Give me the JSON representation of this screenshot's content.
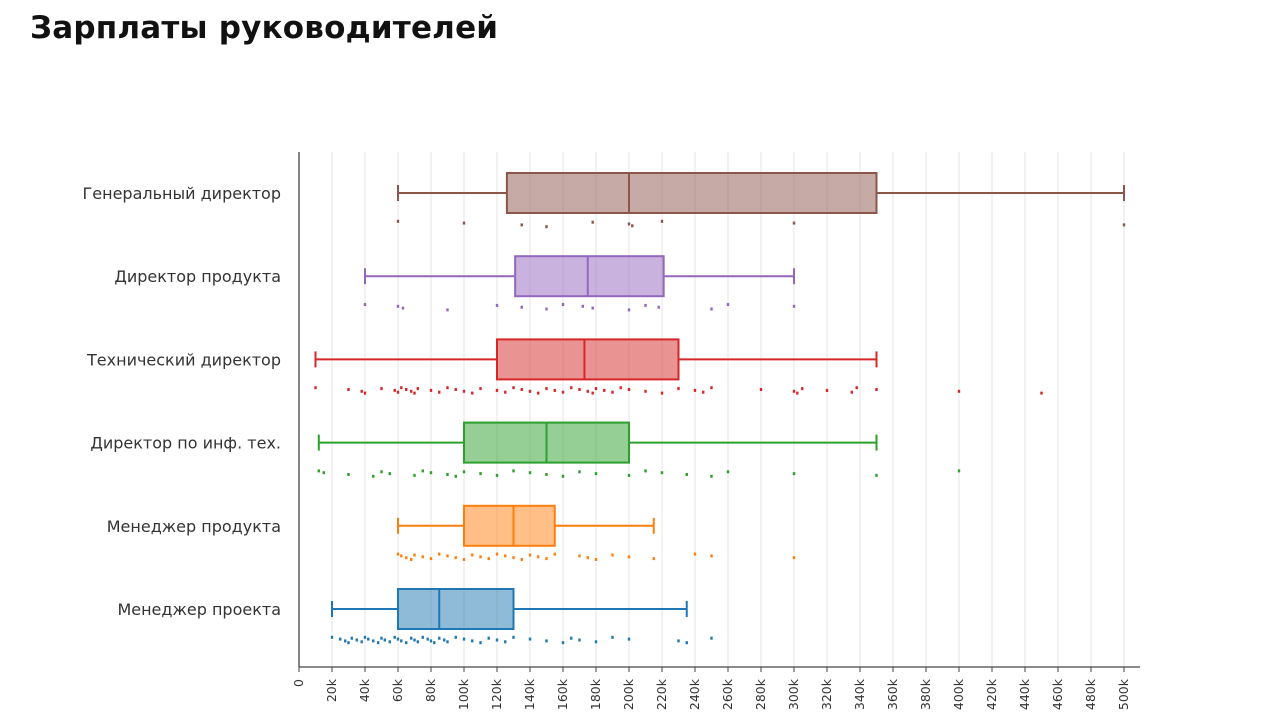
{
  "page": {
    "title": "Зарплаты руководителей"
  },
  "chart_data": {
    "type": "box",
    "orientation": "horizontal",
    "title": "Зарплаты руководителей",
    "xlim": [
      0,
      500000
    ],
    "x_ticks": [
      0,
      20000,
      40000,
      60000,
      80000,
      100000,
      120000,
      140000,
      160000,
      180000,
      200000,
      220000,
      240000,
      260000,
      280000,
      300000,
      320000,
      340000,
      360000,
      380000,
      400000,
      420000,
      440000,
      460000,
      480000,
      500000
    ],
    "x_tick_labels": [
      "0",
      "20k",
      "40k",
      "60k",
      "80k",
      "100k",
      "120k",
      "140k",
      "160k",
      "180k",
      "200k",
      "220k",
      "240k",
      "260k",
      "280k",
      "300k",
      "320k",
      "340k",
      "360k",
      "380k",
      "400k",
      "420k",
      "440k",
      "460k",
      "480k",
      "500k"
    ],
    "grid": true,
    "series": [
      {
        "name": "Генеральный директор",
        "color": "#8c564b",
        "min": 60000,
        "q1": 126000,
        "median": 200000,
        "q3": 350000,
        "max": 500000,
        "points": [
          60000,
          100000,
          135000,
          150000,
          178000,
          200000,
          202000,
          220000,
          300000,
          500000
        ]
      },
      {
        "name": "Директор продукта",
        "color": "#9467bd",
        "min": 40000,
        "q1": 131000,
        "median": 175000,
        "q3": 221000,
        "max": 300000,
        "points": [
          40000,
          60000,
          63000,
          90000,
          120000,
          135000,
          150000,
          160000,
          172000,
          178000,
          200000,
          210000,
          218000,
          250000,
          260000,
          300000
        ]
      },
      {
        "name": "Технический директор",
        "color": "#d62728",
        "min": 10000,
        "q1": 120000,
        "median": 173000,
        "q3": 230000,
        "max": 350000,
        "points": [
          10000,
          30000,
          38000,
          40000,
          50000,
          58000,
          60000,
          62000,
          65000,
          68000,
          70000,
          72000,
          80000,
          85000,
          90000,
          95000,
          100000,
          105000,
          110000,
          120000,
          125000,
          130000,
          135000,
          140000,
          145000,
          150000,
          155000,
          160000,
          165000,
          170000,
          175000,
          178000,
          180000,
          185000,
          190000,
          195000,
          200000,
          210000,
          220000,
          230000,
          240000,
          245000,
          250000,
          280000,
          300000,
          302000,
          305000,
          320000,
          335000,
          338000,
          350000,
          400000,
          450000
        ]
      },
      {
        "name": "Директор по инф. тех.",
        "color": "#2ca02c",
        "min": 12000,
        "q1": 100000,
        "median": 150000,
        "q3": 200000,
        "max": 350000,
        "points": [
          12000,
          15000,
          30000,
          45000,
          50000,
          55000,
          70000,
          75000,
          80000,
          90000,
          95000,
          100000,
          110000,
          120000,
          130000,
          140000,
          150000,
          160000,
          170000,
          180000,
          200000,
          210000,
          220000,
          235000,
          250000,
          260000,
          300000,
          350000,
          400000
        ]
      },
      {
        "name": "Менеджер продукта",
        "color": "#ff7f0e",
        "min": 60000,
        "q1": 100000,
        "median": 130000,
        "q3": 155000,
        "max": 215000,
        "points": [
          60000,
          62000,
          65000,
          68000,
          70000,
          75000,
          80000,
          85000,
          90000,
          95000,
          100000,
          105000,
          110000,
          115000,
          120000,
          125000,
          130000,
          135000,
          140000,
          145000,
          150000,
          155000,
          170000,
          175000,
          180000,
          190000,
          200000,
          215000,
          240000,
          250000,
          300000
        ]
      },
      {
        "name": "Менеджер проекта",
        "color": "#1f77b4",
        "min": 20000,
        "q1": 60000,
        "median": 85000,
        "q3": 130000,
        "max": 235000,
        "points": [
          20000,
          25000,
          28000,
          30000,
          32000,
          35000,
          38000,
          40000,
          42000,
          45000,
          48000,
          50000,
          52000,
          55000,
          58000,
          60000,
          62000,
          65000,
          68000,
          70000,
          72000,
          75000,
          78000,
          80000,
          82000,
          85000,
          88000,
          90000,
          95000,
          100000,
          105000,
          110000,
          115000,
          120000,
          125000,
          130000,
          140000,
          150000,
          160000,
          165000,
          170000,
          180000,
          190000,
          200000,
          230000,
          235000,
          250000
        ]
      }
    ]
  }
}
